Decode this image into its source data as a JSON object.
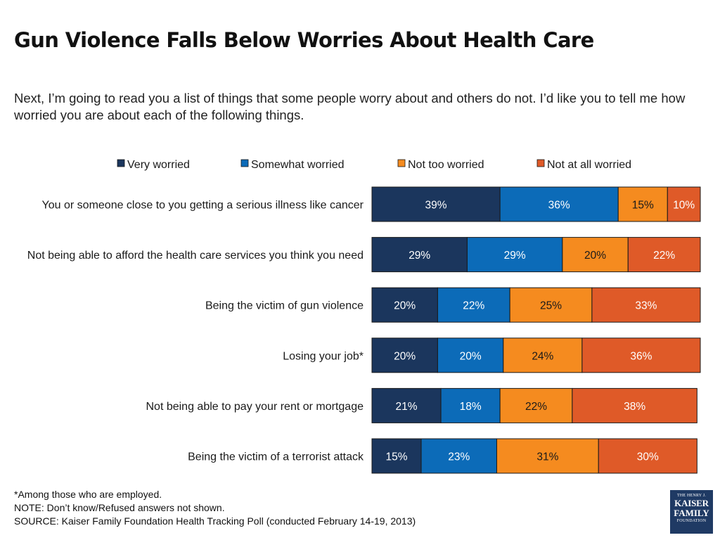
{
  "chart_data": {
    "type": "bar",
    "orientation": "horizontal",
    "stacked": true,
    "title": "Gun Violence Falls Below Worries About Health Care",
    "subtitle": "Next, I’m going to read you a list of things that some people worry about and others do not. I’d like you to tell me how worried you are about each of the following things.",
    "legend_position": "top",
    "categories": [
      "You or someone close to you getting a serious illness like cancer",
      "Not being able to afford the health care services you think you need",
      "Being the victim of gun violence",
      "Losing your job*",
      "Not being able to pay your rent or mortgage",
      "Being the victim of a terrorist attack"
    ],
    "series": [
      {
        "name": "Very worried",
        "color": "#1b365d",
        "values": [
          39,
          29,
          20,
          20,
          21,
          15
        ],
        "labels": [
          "39%",
          "29%",
          "20%",
          "20%",
          "21%",
          "15%"
        ]
      },
      {
        "name": "Somewhat worried",
        "color": "#0c6bb8",
        "values": [
          36,
          29,
          22,
          20,
          18,
          23
        ],
        "labels": [
          "36%",
          "29%",
          "22%",
          "20%",
          "18%",
          "23%"
        ]
      },
      {
        "name": "Not too worried",
        "color": "#f58b1f",
        "values": [
          15,
          20,
          25,
          24,
          22,
          31
        ],
        "labels": [
          "15%",
          "20%",
          "25%",
          "24%",
          "22%",
          "31%"
        ]
      },
      {
        "name": "Not at all worried",
        "color": "#df5a28",
        "values": [
          10,
          22,
          33,
          36,
          38,
          30
        ],
        "labels": [
          "10%",
          "22%",
          "33%",
          "36%",
          "38%",
          "30%"
        ]
      }
    ],
    "label_colors": [
      "#ffffff",
      "#ffffff",
      "#1a1a1a",
      "#ffffff"
    ],
    "xlim": [
      0,
      100
    ],
    "grid": false
  },
  "footnotes": {
    "employed": "*Among those who are employed.",
    "note": "NOTE: Don’t know/Refused answers not shown.",
    "source": "SOURCE: Kaiser Family Foundation Health Tracking Poll (conducted February 14-19, 2013)"
  },
  "logo": {
    "line1": "THE HENRY J.",
    "line2": "KAISER",
    "line3": "FAMILY",
    "line4": "FOUNDATION"
  }
}
